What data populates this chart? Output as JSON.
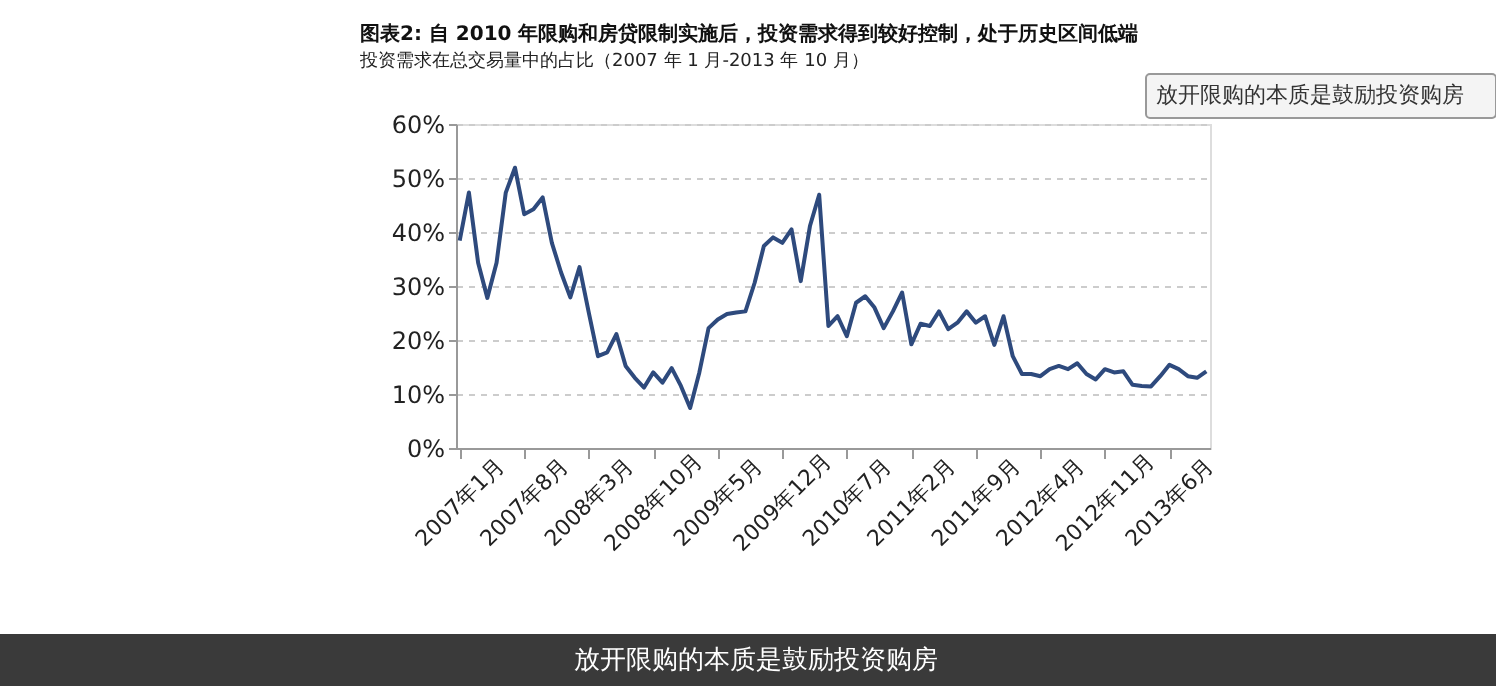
{
  "chart_data": {
    "type": "line",
    "title": "图表2: 自 2010 年限购和房贷限制实施后，投资需求得到较好控制，处于历史区间低端",
    "subtitle": "投资需求在总交易量中的占比（2007 年 1 月-2013 年 10 月）",
    "categories": [
      "2007年1月",
      null,
      null,
      null,
      null,
      null,
      null,
      "2007年8月",
      null,
      null,
      null,
      null,
      null,
      null,
      "2008年3月",
      null,
      null,
      null,
      null,
      null,
      null,
      "2008年10月",
      null,
      null,
      null,
      null,
      null,
      null,
      "2009年5月",
      null,
      null,
      null,
      null,
      null,
      null,
      "2009年12月",
      null,
      null,
      null,
      null,
      null,
      null,
      "2010年7月",
      null,
      null,
      null,
      null,
      null,
      null,
      "2011年2月",
      null,
      null,
      null,
      null,
      null,
      null,
      "2011年9月",
      null,
      null,
      null,
      null,
      null,
      null,
      "2012年4月",
      null,
      null,
      null,
      null,
      null,
      null,
      "2012年11月",
      null,
      null,
      null,
      null,
      null,
      null,
      "2013年6月",
      null,
      null,
      null,
      null
    ],
    "series": [
      {
        "color": "#2e4a7d",
        "values": [
          38.4,
          47.3,
          34.3,
          27.8,
          34.3,
          47.3,
          51.9,
          43.3,
          44.2,
          46.4,
          38.0,
          32.5,
          27.9,
          33.5,
          25.1,
          17.0,
          17.7,
          21.1,
          15.2,
          13.0,
          11.2,
          14.0,
          12.1,
          14.8,
          11.5,
          7.4,
          14.0,
          22.2,
          23.8,
          24.8,
          25.1,
          25.3,
          30.6,
          37.4,
          39.0,
          38.0,
          40.5,
          30.9,
          41.1,
          46.9,
          22.6,
          24.4,
          20.7,
          26.9,
          28.1,
          26.0,
          22.2,
          25.3,
          28.8,
          19.2,
          23.0,
          22.6,
          25.3,
          22.0,
          23.2,
          25.3,
          23.2,
          24.4,
          19.1,
          24.4,
          17.0,
          13.7,
          13.7,
          13.3,
          14.6,
          15.2,
          14.6,
          15.7,
          13.7,
          12.7,
          14.6,
          14.0,
          14.2,
          11.7,
          11.5,
          11.4,
          13.3,
          15.4,
          14.6,
          13.3,
          13.0,
          14.2
        ]
      }
    ],
    "ylim": [
      0,
      60
    ],
    "yticks": [
      {
        "value": 0,
        "label": "0%"
      },
      {
        "value": 10,
        "label": "10%"
      },
      {
        "value": 20,
        "label": "20%"
      },
      {
        "value": 30,
        "label": "30%"
      },
      {
        "value": 40,
        "label": "40%"
      },
      {
        "value": 50,
        "label": "50%"
      },
      {
        "value": 60,
        "label": "60%"
      }
    ],
    "grid": "y",
    "legend": false,
    "marker": "none",
    "line_style": "solid",
    "annotations": [
      "放开限购的本质是鼓励投资购房",
      "放开限购的本质是鼓励投资购房"
    ]
  }
}
